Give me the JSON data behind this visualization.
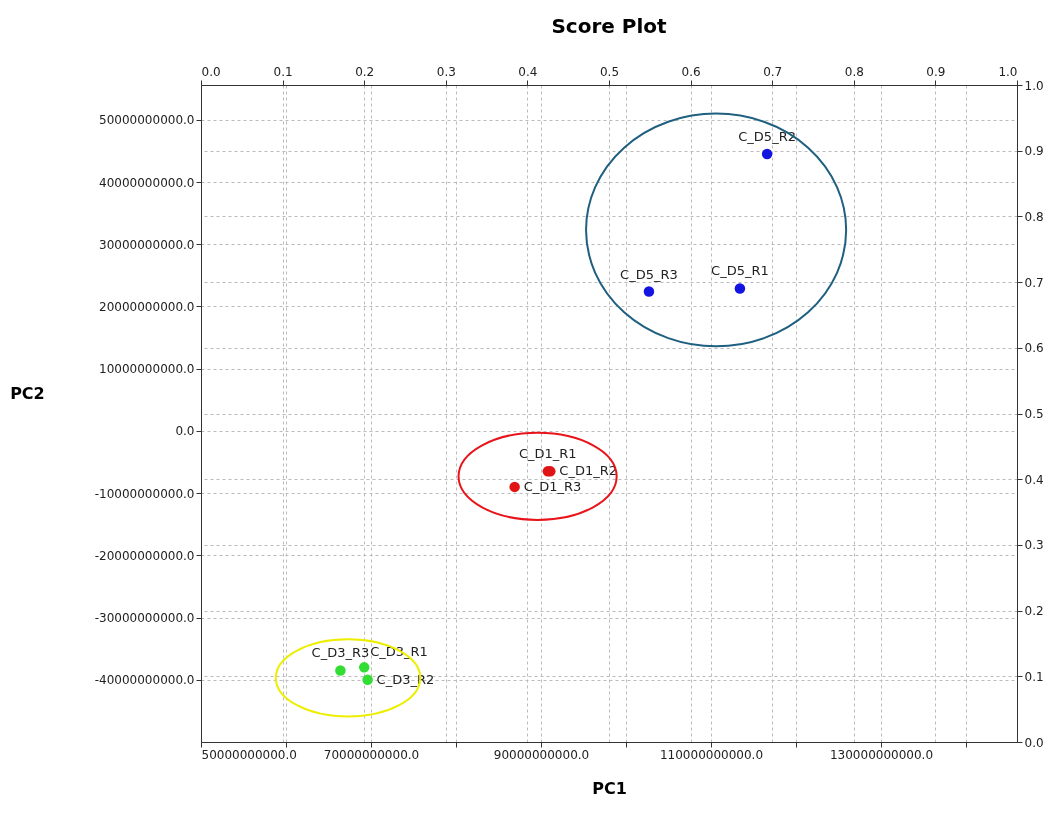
{
  "chart_data": {
    "type": "scatter",
    "title": "Score Plot",
    "xlabel": "PC1",
    "ylabel": "PC2",
    "xlim": [
      50000000000.0,
      146000000000.0
    ],
    "ylim": [
      -50000000000.0,
      55600000000.0
    ],
    "x2lim": [
      0,
      1
    ],
    "y2lim": [
      0,
      1
    ],
    "xticks": [
      {
        "value": 50000000000.0,
        "label": "50000000000.0"
      },
      {
        "value": 60000000000.0,
        "label": null
      },
      {
        "value": 70000000000.0,
        "label": "70000000000.0"
      },
      {
        "value": 80000000000.0,
        "label": null
      },
      {
        "value": 90000000000.0,
        "label": "90000000000.0"
      },
      {
        "value": 100000000000.0,
        "label": null
      },
      {
        "value": 110000000000.0,
        "label": "110000000000.0"
      },
      {
        "value": 120000000000.0,
        "label": null
      },
      {
        "value": 130000000000.0,
        "label": "130000000000.0"
      },
      {
        "value": 140000000000.0,
        "label": null
      }
    ],
    "yticks": [
      {
        "value": -40000000000.0,
        "label": "-40000000000.0"
      },
      {
        "value": -30000000000.0,
        "label": "-30000000000.0"
      },
      {
        "value": -20000000000.0,
        "label": "-20000000000.0"
      },
      {
        "value": -10000000000.0,
        "label": "-10000000000.0"
      },
      {
        "value": 0,
        "label": "0.0"
      },
      {
        "value": 10000000000.0,
        "label": "10000000000.0"
      },
      {
        "value": 20000000000.0,
        "label": "20000000000.0"
      },
      {
        "value": 30000000000.0,
        "label": "30000000000.0"
      },
      {
        "value": 40000000000.0,
        "label": "40000000000.0"
      },
      {
        "value": 50000000000.0,
        "label": "50000000000.0"
      }
    ],
    "x2ticks": [
      {
        "value": 0,
        "label": "0.0"
      },
      0.1,
      0.2,
      0.3,
      0.4,
      0.5,
      0.6,
      0.7,
      0.8,
      0.9,
      {
        "value": 1,
        "label": "1.0"
      }
    ],
    "y2ticks": [
      {
        "value": 0,
        "label": "0.0"
      },
      0.1,
      0.2,
      0.3,
      0.4,
      0.5,
      0.6,
      0.7,
      0.8,
      0.9,
      {
        "value": 1,
        "label": "1.0"
      }
    ],
    "series": [
      {
        "color": "#1414e0",
        "x": [
          116600000000.0,
          102700000000.0,
          113400000000.0
        ],
        "values": [
          44500000000.0,
          22400000000.0,
          22900000000.0
        ]
      },
      {
        "color": "#e01414",
        "x": [
          86900000000.0,
          90800000000.0,
          91100000000.0
        ],
        "values": [
          -9000000000.0,
          -6500000000.0,
          -6500000000.0
        ]
      },
      {
        "color": "#33dd33",
        "x": [
          66400000000.0,
          69200000000.0,
          69600000000.0
        ],
        "values": [
          -38500000000.0,
          -38000000000.0,
          -40000000000.0
        ]
      }
    ],
    "annotations": [
      {
        "text": "C_D5_R2",
        "x": 116600000000.0,
        "y": 44500000000.0
      },
      {
        "text": "C_D5_R3",
        "x": 102700000000.0,
        "y": 22400000000.0
      },
      {
        "text": "C_D5_R1",
        "x": 113400000000.0,
        "y": 22900000000.0
      },
      {
        "text": "C_D1_R3",
        "x": 86900000000.0,
        "y": -9000000000.0
      },
      {
        "text": "C_D1_R1",
        "x": 90800000000.0,
        "y": -6500000000.0
      },
      {
        "text": "C_D1_R2",
        "x": 91100000000.0,
        "y": -6500000000.0
      },
      {
        "text": "C_D3_R3",
        "x": 66400000000.0,
        "y": -38500000000.0
      },
      {
        "text": "C_D3_R1",
        "x": 69200000000.0,
        "y": -38000000000.0
      },
      {
        "text": "C_D3_R2",
        "x": 69600000000.0,
        "y": -40000000000.0
      }
    ],
    "grid": true,
    "legend": false,
    "marker": "circle"
  }
}
